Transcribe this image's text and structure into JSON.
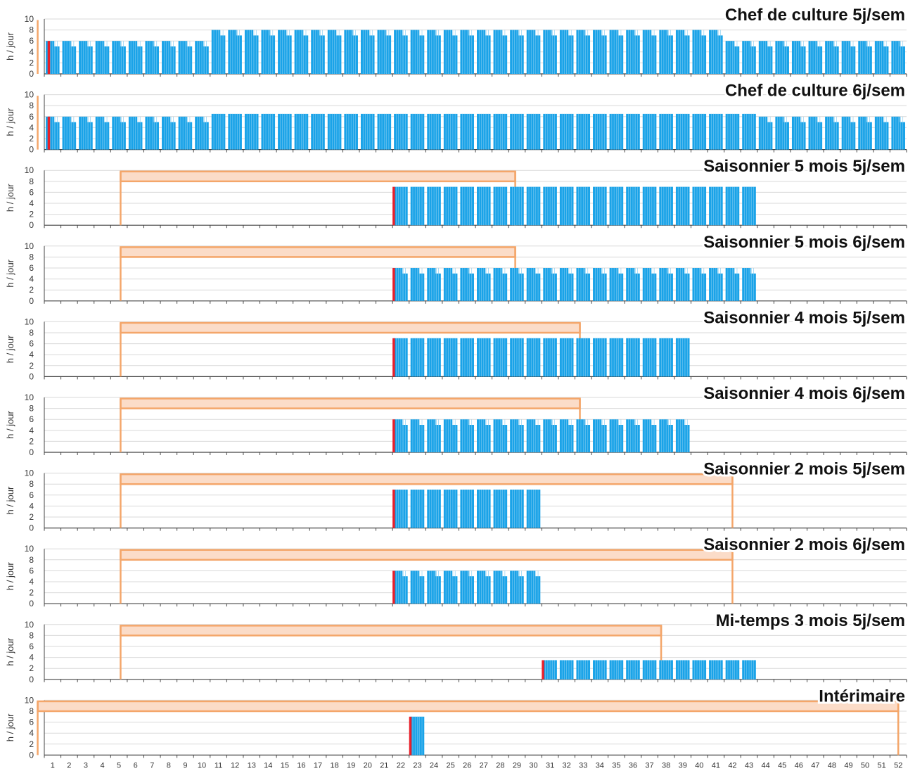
{
  "chart_data": {
    "type": "bar",
    "x": [
      1,
      2,
      3,
      4,
      5,
      6,
      7,
      8,
      9,
      10,
      11,
      12,
      13,
      14,
      15,
      16,
      17,
      18,
      19,
      20,
      21,
      22,
      23,
      24,
      25,
      26,
      27,
      28,
      29,
      30,
      31,
      32,
      33,
      34,
      35,
      36,
      37,
      38,
      39,
      40,
      41,
      42,
      43,
      44,
      45,
      46,
      47,
      48,
      49,
      50,
      51,
      52
    ],
    "ylabel": "h / jour",
    "ylim": [
      0,
      10
    ],
    "yticks": [
      0,
      2,
      4,
      6,
      8,
      10
    ],
    "grid": true,
    "colors": {
      "bar": "#1aa3e8",
      "start_marker": "#e8202a",
      "contract_span": "#f4a66a",
      "contract_fill": "#fbdcc8"
    },
    "panels": [
      {
        "title": "Chef de culture 5j/sem",
        "contract": {
          "start_week": 0.6,
          "end_week": 0.6
        },
        "start_marker_week": 1.2,
        "bars": [
          {
            "from_week": 1,
            "to_week": 11,
            "hours": [
              6,
              5
            ]
          },
          {
            "from_week": 11,
            "to_week": 42,
            "hours": [
              8,
              7
            ]
          },
          {
            "from_week": 42,
            "to_week": 53,
            "hours": [
              6,
              5
            ]
          }
        ]
      },
      {
        "title": "Chef de culture 6j/sem",
        "contract": {
          "start_week": 0.6,
          "end_week": 0.6
        },
        "start_marker_week": 1.2,
        "bars": [
          {
            "from_week": 1,
            "to_week": 11,
            "hours": [
              6,
              5
            ]
          },
          {
            "from_week": 11,
            "to_week": 44,
            "hours": [
              6.5,
              6.5
            ]
          },
          {
            "from_week": 44,
            "to_week": 53,
            "hours": [
              6,
              5
            ]
          }
        ]
      },
      {
        "title": "Saisonnier 5 mois 5j/sem",
        "contract": {
          "start_week": 5.6,
          "end_week": 29.4
        },
        "start_marker_week": 22,
        "bars": [
          {
            "from_week": 22,
            "to_week": 44,
            "hours": [
              7,
              7
            ]
          }
        ]
      },
      {
        "title": "Saisonnier 5 mois 6j/sem",
        "contract": {
          "start_week": 5.6,
          "end_week": 29.4
        },
        "start_marker_week": 22,
        "bars": [
          {
            "from_week": 22,
            "to_week": 44,
            "hours": [
              6,
              5
            ]
          }
        ]
      },
      {
        "title": "Saisonnier 4 mois 5j/sem",
        "contract": {
          "start_week": 5.6,
          "end_week": 33.3
        },
        "start_marker_week": 22,
        "bars": [
          {
            "from_week": 22,
            "to_week": 40,
            "hours": [
              7,
              7
            ]
          }
        ]
      },
      {
        "title": "Saisonnier 4 mois 6j/sem",
        "contract": {
          "start_week": 5.6,
          "end_week": 33.3
        },
        "start_marker_week": 22,
        "bars": [
          {
            "from_week": 22,
            "to_week": 40,
            "hours": [
              6,
              5
            ]
          }
        ]
      },
      {
        "title": "Saisonnier 2 mois 5j/sem",
        "contract": {
          "start_week": 5.6,
          "end_week": 42.5
        },
        "start_marker_week": 22,
        "bars": [
          {
            "from_week": 22,
            "to_week": 31,
            "hours": [
              7,
              7
            ]
          }
        ]
      },
      {
        "title": "Saisonnier 2 mois 6j/sem",
        "contract": {
          "start_week": 5.6,
          "end_week": 42.5
        },
        "start_marker_week": 22,
        "bars": [
          {
            "from_week": 22,
            "to_week": 31,
            "hours": [
              6,
              5
            ]
          }
        ]
      },
      {
        "title": "Mi-temps 3 mois 5j/sem",
        "contract": {
          "start_week": 5.6,
          "end_week": 38.2
        },
        "start_marker_week": 31,
        "bars": [
          {
            "from_week": 31,
            "to_week": 44,
            "hours": [
              3.5,
              3.5
            ]
          }
        ]
      },
      {
        "title": "Intérimaire",
        "contract": {
          "start_week": 0.6,
          "end_week": 52.5
        },
        "start_marker_week": 23,
        "bars": [
          {
            "from_week": 23,
            "to_week": 24,
            "hours": [
              7,
              7
            ]
          }
        ]
      }
    ]
  }
}
